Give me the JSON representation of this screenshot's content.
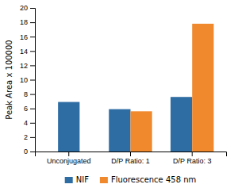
{
  "chart_data": {
    "type": "bar",
    "categories": [
      "Unconjugated",
      "D/P Ratio: 1",
      "D/P Ratio: 3"
    ],
    "series": [
      {
        "name": "NIF",
        "color": "#2e6da4",
        "values": [
          6.9,
          5.9,
          7.6
        ]
      },
      {
        "name": "Fluorescence 458 nm",
        "color": "#f0882d",
        "values": [
          null,
          5.6,
          17.8
        ]
      }
    ],
    "y_label": "Peak Area x 100000",
    "ylim": [
      0,
      20
    ],
    "yticks": [
      0,
      2,
      4,
      6,
      8,
      10,
      12,
      14,
      16,
      18,
      20
    ],
    "grid": false,
    "legend": "bottom"
  }
}
